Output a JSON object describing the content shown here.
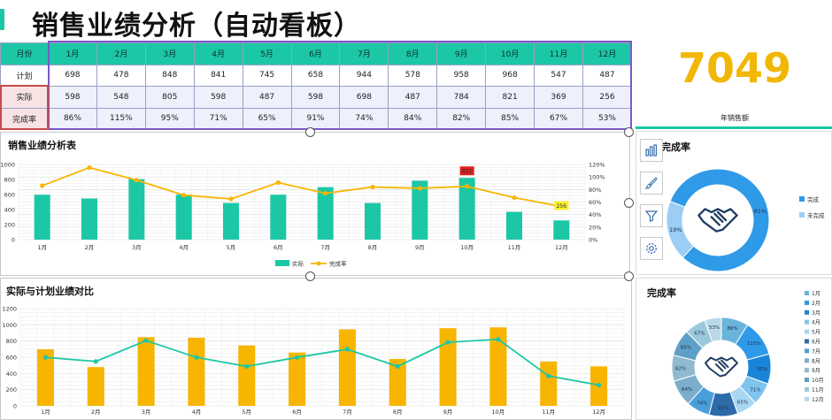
{
  "title": "销售业绩分析（自动看板）",
  "table": {
    "row_labels": {
      "month": "月份",
      "plan": "计划",
      "actual": "实际",
      "rate": "完成率"
    },
    "months": [
      "1月",
      "2月",
      "3月",
      "4月",
      "5月",
      "6月",
      "7月",
      "8月",
      "9月",
      "10月",
      "11月",
      "12月"
    ],
    "plan": [
      "698",
      "478",
      "848",
      "841",
      "745",
      "658",
      "944",
      "578",
      "958",
      "968",
      "547",
      "487"
    ],
    "actual": [
      "598",
      "548",
      "805",
      "598",
      "487",
      "598",
      "698",
      "487",
      "784",
      "821",
      "369",
      "256"
    ],
    "rate": [
      "86%",
      "115%",
      "95%",
      "71%",
      "65%",
      "91%",
      "74%",
      "84%",
      "82%",
      "85%",
      "67%",
      "53%"
    ]
  },
  "annual": {
    "value": "7049",
    "label": "年销售额"
  },
  "panel1": {
    "title": "销售业绩分析表"
  },
  "panel2": {
    "title": "实际与计划业绩对比"
  },
  "panel3": {
    "title": "完成率"
  },
  "panel4": {
    "title": "完成率"
  },
  "side_icons": [
    "chart-type-icon",
    "brush-icon",
    "filter-icon",
    "settings-icon"
  ],
  "colors": {
    "teal": "#1cc7a6",
    "orange": "#f7b500",
    "blue": "#2f9ae8",
    "light_blue": "#9ccdf4",
    "gold": "#f2b705"
  },
  "chart_data": [
    {
      "type": "bar",
      "title": "销售业绩分析表",
      "categories": [
        "1月",
        "2月",
        "3月",
        "4月",
        "5月",
        "6月",
        "7月",
        "8月",
        "9月",
        "10月",
        "11月",
        "12月"
      ],
      "series": [
        {
          "name": "实际",
          "type": "bar",
          "axis": "left",
          "values": [
            598,
            548,
            805,
            598,
            487,
            598,
            698,
            487,
            784,
            821,
            369,
            256
          ]
        },
        {
          "name": "完成率",
          "type": "line",
          "axis": "right",
          "values": [
            86,
            115,
            95,
            71,
            65,
            91,
            74,
            84,
            82,
            85,
            67,
            53
          ]
        }
      ],
      "ylim": [
        0,
        1000
      ],
      "y2lim": [
        0,
        120
      ],
      "y_ticks": [
        "0",
        "200",
        "400",
        "600",
        "800",
        "1000"
      ],
      "y2_ticks": [
        "0%",
        "20%",
        "40%",
        "60%",
        "80%",
        "100%",
        "120%"
      ],
      "highlights": [
        {
          "category": "10月",
          "label": "821",
          "color": "#e02020"
        },
        {
          "category": "12月",
          "label": "256",
          "color": "#f7ee2c"
        }
      ],
      "legend": "bottom"
    },
    {
      "type": "bar",
      "title": "实际与计划业绩对比",
      "categories": [
        "1月",
        "2月",
        "3月",
        "4月",
        "5月",
        "6月",
        "7月",
        "8月",
        "9月",
        "10月",
        "11月",
        "12月"
      ],
      "series": [
        {
          "type": "bar",
          "values": [
            698,
            478,
            848,
            841,
            745,
            658,
            944,
            578,
            958,
            968,
            547,
            487
          ]
        },
        {
          "type": "line",
          "values": [
            598,
            548,
            805,
            598,
            487,
            598,
            698,
            487,
            784,
            821,
            369,
            256
          ]
        }
      ],
      "ylim": [
        0,
        1200
      ],
      "y_ticks": [
        "0",
        "200",
        "400",
        "600",
        "800",
        "1000",
        "1200"
      ]
    },
    {
      "type": "pie",
      "title": "完成率",
      "labels": [
        "完成",
        "未完成"
      ],
      "values": [
        81,
        19
      ],
      "value_labels": [
        "81%",
        "19%"
      ],
      "legend": "right"
    },
    {
      "type": "pie",
      "title": "完成率",
      "labels": [
        "1月",
        "2月",
        "3月",
        "4月",
        "5月",
        "6月",
        "7月",
        "8月",
        "9月",
        "10月",
        "11月",
        "12月"
      ],
      "values": [
        86,
        115,
        95,
        71,
        65,
        91,
        74,
        84,
        82,
        85,
        67,
        53
      ],
      "value_labels": [
        "86%",
        "115%",
        "95%",
        "71%",
        "65%",
        "91%",
        "74%",
        "84%",
        "82%",
        "85%",
        "67%",
        "53%"
      ],
      "legend": "right"
    }
  ]
}
